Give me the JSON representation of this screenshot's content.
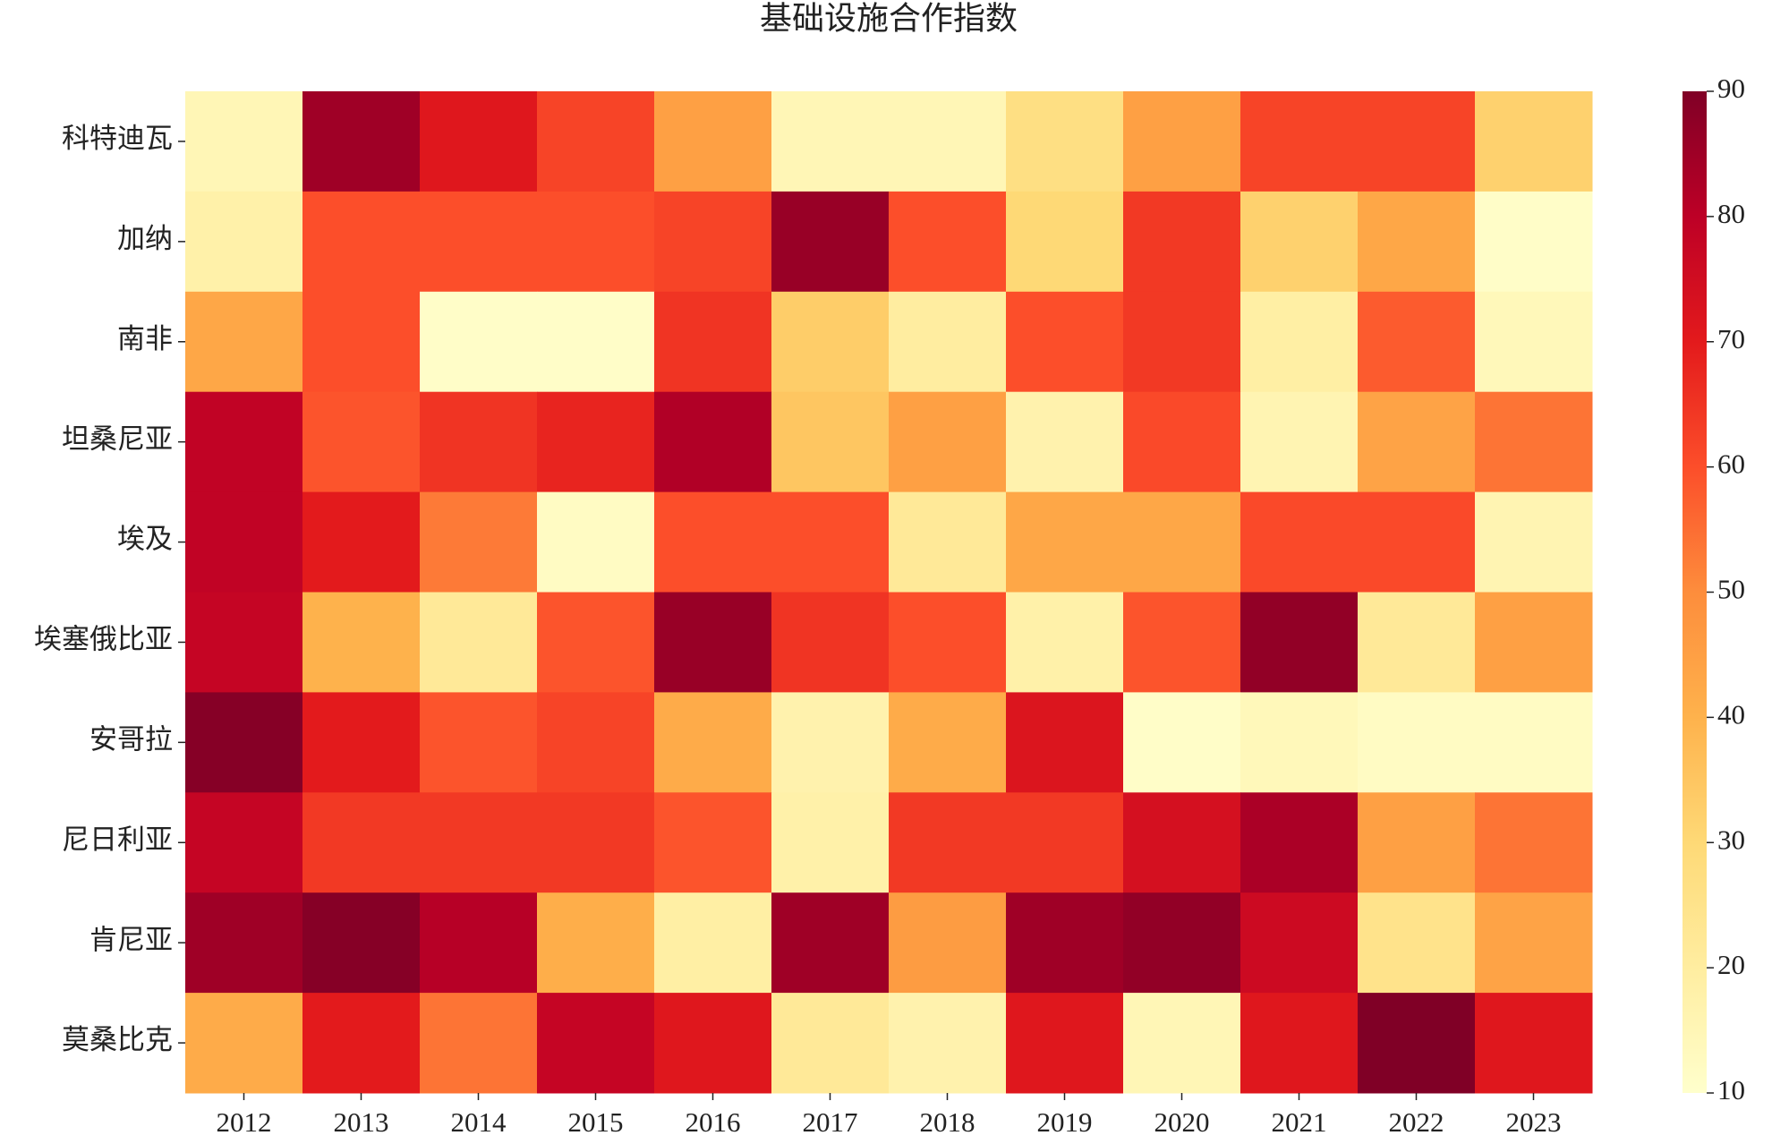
{
  "chart_data": {
    "type": "heatmap",
    "title": "基础设施合作指数",
    "categories": [
      "2012",
      "2013",
      "2014",
      "2015",
      "2016",
      "2017",
      "2018",
      "2019",
      "2020",
      "2021",
      "2022",
      "2023"
    ],
    "rows": [
      "科特迪瓦",
      "加纳",
      "南非",
      "坦桑尼亚",
      "埃及",
      "埃塞俄比亚",
      "安哥拉",
      "尼日利亚",
      "肯尼亚",
      "莫桑比克"
    ],
    "values": [
      [
        15,
        85,
        71,
        62,
        45,
        15,
        15,
        27,
        45,
        62,
        62,
        32
      ],
      [
        18,
        60,
        60,
        60,
        62,
        86,
        60,
        30,
        64,
        32,
        43,
        11
      ],
      [
        43,
        60,
        11,
        11,
        65,
        33,
        20,
        60,
        64,
        19,
        58,
        14
      ],
      [
        79,
        59,
        65,
        68,
        82,
        35,
        45,
        17,
        61,
        16,
        44,
        54
      ],
      [
        79,
        70,
        53,
        12,
        60,
        60,
        22,
        43,
        43,
        61,
        61,
        16
      ],
      [
        78,
        40,
        22,
        59,
        86,
        65,
        60,
        18,
        59,
        87,
        22,
        45
      ],
      [
        89,
        70,
        59,
        62,
        42,
        17,
        42,
        72,
        11,
        14,
        12,
        12
      ],
      [
        78,
        64,
        64,
        64,
        59,
        18,
        64,
        64,
        74,
        83,
        45,
        54
      ],
      [
        85,
        89,
        81,
        41,
        19,
        85,
        46,
        85,
        87,
        76,
        25,
        44
      ],
      [
        42,
        70,
        54,
        78,
        71,
        22,
        17,
        71,
        15,
        71,
        90,
        71
      ]
    ],
    "colormap": "YlOrRd",
    "clim": [
      10,
      90
    ],
    "cticks": [
      10,
      20,
      30,
      40,
      50,
      60,
      70,
      80,
      90
    ]
  }
}
